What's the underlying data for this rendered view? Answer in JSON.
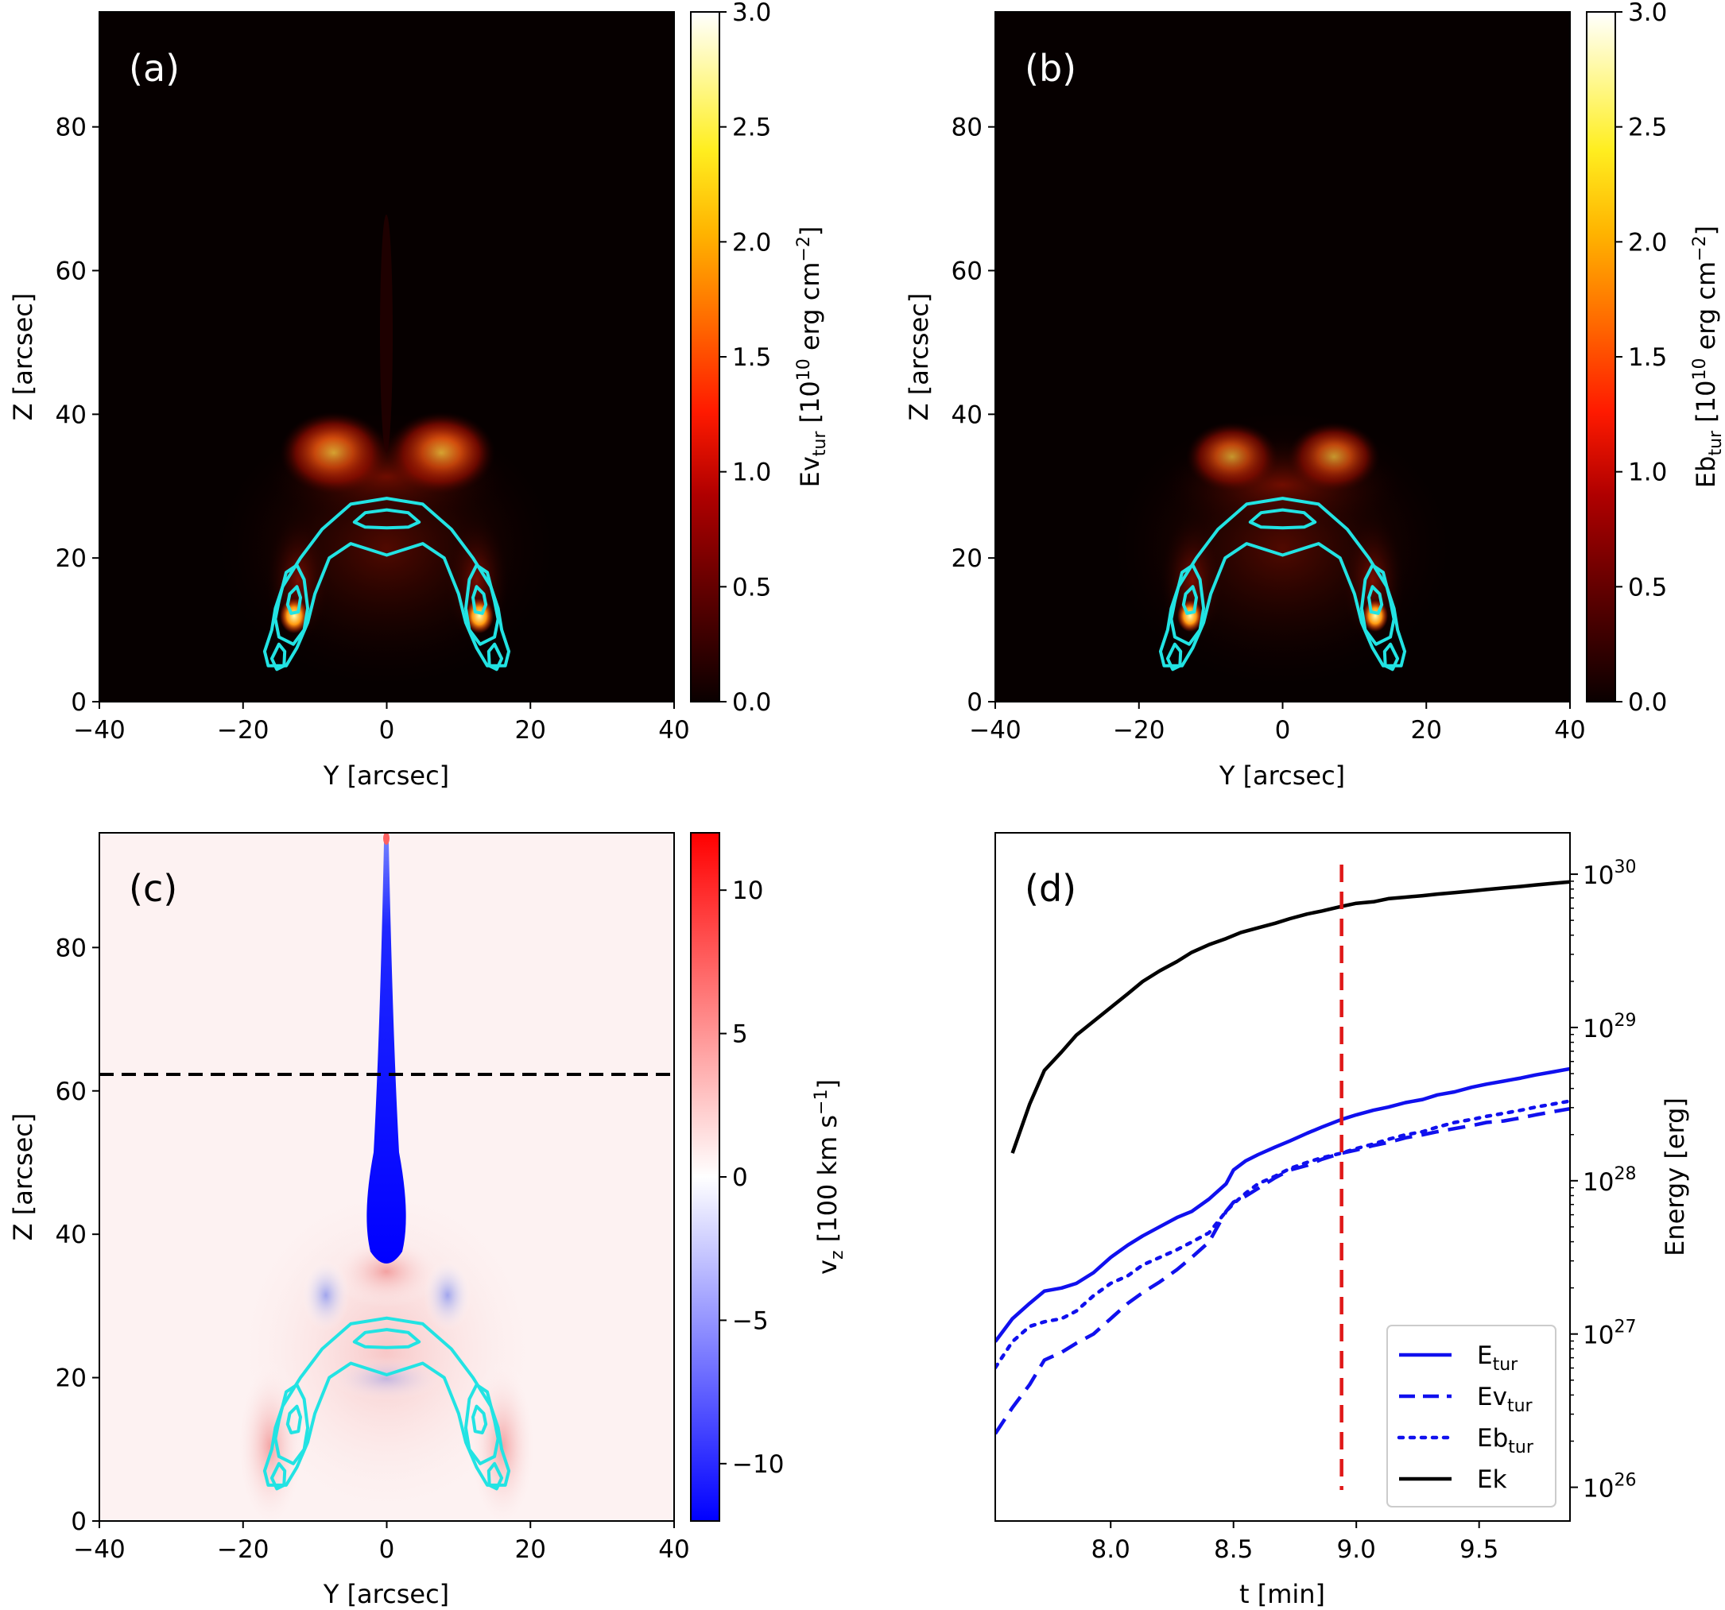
{
  "panels": {
    "a": {
      "label": "(a)",
      "xlabel": "Y [arcsec]",
      "ylabel": "Z [arcsec]",
      "colorbar_label_main": "Ev",
      "colorbar_label_sub": "tur",
      "colorbar_label_rest": " [10",
      "colorbar_label_exp": "10",
      "colorbar_label_unit": " erg cm",
      "colorbar_label_unit_exp": "−2",
      "colorbar_label_close": "]",
      "cbar_ticks": [
        "0.0",
        "0.5",
        "1.0",
        "1.5",
        "2.0",
        "2.5",
        "3.0"
      ]
    },
    "b": {
      "label": "(b)",
      "xlabel": "Y [arcsec]",
      "ylabel": "Z [arcsec]",
      "colorbar_label_main": "Eb",
      "colorbar_label_sub": "tur",
      "colorbar_label_rest": " [10",
      "colorbar_label_exp": "10",
      "colorbar_label_unit": " erg cm",
      "colorbar_label_unit_exp": "−2",
      "colorbar_label_close": "]",
      "cbar_ticks": [
        "0.0",
        "0.5",
        "1.0",
        "1.5",
        "2.0",
        "2.5",
        "3.0"
      ]
    },
    "c": {
      "label": "(c)",
      "xlabel": "Y [arcsec]",
      "ylabel": "Z [arcsec]",
      "colorbar_label_main": "v",
      "colorbar_label_sub": "z",
      "colorbar_label_rest": " [100 km s",
      "colorbar_label_exp": "−1",
      "colorbar_label_close": "]",
      "cbar_ticks": [
        "−10",
        "−5",
        "0",
        "5",
        "10"
      ],
      "dashed_line_z": 62.3
    },
    "d": {
      "label": "(d)",
      "xlabel": "t [min]",
      "ylabel": "Energy [erg]",
      "ytick_exponents": [
        "26",
        "27",
        "28",
        "29",
        "30"
      ]
    }
  },
  "colors": {
    "cyan": "#22e3e3",
    "blue": "#1010ee",
    "red_dash": "#e01818",
    "black": "#000000"
  },
  "chart_data": [
    {
      "type": "heatmap",
      "panel": "a",
      "title": "",
      "quantity": "Ev_tur [10^10 erg cm^-2]",
      "x_ticks": [
        -40,
        -20,
        0,
        20,
        40
      ],
      "y_ticks": [
        0,
        20,
        40,
        60,
        80
      ],
      "xlim": [
        -40,
        40
      ],
      "ylim": [
        0,
        96
      ],
      "clim": [
        0.0,
        3.0
      ],
      "colormap": "hot"
    },
    {
      "type": "heatmap",
      "panel": "b",
      "quantity": "Eb_tur [10^10 erg cm^-2]",
      "x_ticks": [
        -40,
        -20,
        0,
        20,
        40
      ],
      "y_ticks": [
        0,
        20,
        40,
        60,
        80
      ],
      "xlim": [
        -40,
        40
      ],
      "ylim": [
        0,
        96
      ],
      "clim": [
        0.0,
        3.0
      ],
      "colormap": "hot"
    },
    {
      "type": "heatmap",
      "panel": "c",
      "quantity": "v_z [100 km s^-1]",
      "x_ticks": [
        -40,
        -20,
        0,
        20,
        40
      ],
      "y_ticks": [
        0,
        20,
        40,
        60,
        80
      ],
      "xlim": [
        -40,
        40
      ],
      "ylim": [
        0,
        96
      ],
      "clim": [
        -12,
        12
      ],
      "colormap": "bwr"
    },
    {
      "type": "line",
      "panel": "d",
      "xlabel": "t [min]",
      "ylabel": "Energy [erg]",
      "xlim": [
        7.53,
        9.87
      ],
      "ylim_log10": [
        25.78,
        30.27
      ],
      "yscale": "log",
      "x_ticks": [
        8.0,
        8.5,
        9.0,
        9.5
      ],
      "x_tick_labels": [
        "8.0",
        "8.5",
        "9.0",
        "9.5"
      ],
      "vline_x": 8.94,
      "legend_position": "lower-right",
      "series": [
        {
          "name": "E",
          "sub": "tur",
          "style": "solid",
          "color": "#1010ee",
          "x": [
            7.53,
            7.6,
            7.67,
            7.73,
            7.8,
            7.86,
            7.93,
            8.0,
            8.07,
            8.13,
            8.2,
            8.27,
            8.33,
            8.4,
            8.47,
            8.5,
            8.55,
            8.6,
            8.67,
            8.73,
            8.8,
            8.86,
            8.94,
            9.0,
            9.07,
            9.13,
            9.2,
            9.27,
            9.33,
            9.4,
            9.47,
            9.53,
            9.6,
            9.67,
            9.73,
            9.8,
            9.87
          ],
          "log10": [
            26.95,
            27.1,
            27.2,
            27.28,
            27.3,
            27.33,
            27.4,
            27.5,
            27.58,
            27.64,
            27.7,
            27.76,
            27.8,
            27.88,
            27.98,
            28.07,
            28.13,
            28.17,
            28.22,
            28.26,
            28.31,
            28.35,
            28.4,
            28.43,
            28.46,
            28.48,
            28.51,
            28.53,
            28.56,
            28.58,
            28.61,
            28.63,
            28.65,
            28.67,
            28.69,
            28.71,
            28.73
          ]
        },
        {
          "name": "Ev",
          "sub": "tur",
          "style": "dashed",
          "color": "#1010ee",
          "x": [
            7.53,
            7.6,
            7.67,
            7.73,
            7.8,
            7.86,
            7.93,
            8.0,
            8.07,
            8.13,
            8.2,
            8.27,
            8.33,
            8.4,
            8.47,
            8.5,
            8.55,
            8.6,
            8.67,
            8.73,
            8.8,
            8.86,
            8.94,
            9.0,
            9.07,
            9.13,
            9.2,
            9.27,
            9.33,
            9.4,
            9.47,
            9.53,
            9.6,
            9.67,
            9.73,
            9.8,
            9.87
          ],
          "log10": [
            26.35,
            26.52,
            26.67,
            26.83,
            26.88,
            26.94,
            27.0,
            27.1,
            27.2,
            27.27,
            27.34,
            27.42,
            27.5,
            27.6,
            27.8,
            27.86,
            27.9,
            27.95,
            28.02,
            28.07,
            28.1,
            28.14,
            28.18,
            28.2,
            28.23,
            28.25,
            28.28,
            28.3,
            28.32,
            28.34,
            28.36,
            28.38,
            28.39,
            28.41,
            28.43,
            28.45,
            28.47
          ]
        },
        {
          "name": "Eb",
          "sub": "tur",
          "style": "dotted",
          "color": "#1010ee",
          "x": [
            7.53,
            7.6,
            7.67,
            7.73,
            7.8,
            7.86,
            7.93,
            8.0,
            8.07,
            8.13,
            8.2,
            8.27,
            8.33,
            8.4,
            8.47,
            8.5,
            8.55,
            8.6,
            8.67,
            8.73,
            8.8,
            8.86,
            8.94,
            9.0,
            9.07,
            9.13,
            9.2,
            9.27,
            9.33,
            9.4,
            9.47,
            9.53,
            9.6,
            9.67,
            9.73,
            9.8,
            9.87
          ],
          "log10": [
            26.78,
            26.95,
            27.05,
            27.08,
            27.1,
            27.15,
            27.25,
            27.33,
            27.38,
            27.45,
            27.5,
            27.55,
            27.6,
            27.66,
            27.8,
            27.85,
            27.92,
            27.98,
            28.03,
            28.08,
            28.12,
            28.15,
            28.18,
            28.21,
            28.24,
            28.27,
            28.3,
            28.32,
            28.35,
            28.38,
            28.4,
            28.42,
            28.44,
            28.46,
            28.48,
            28.5,
            28.52
          ]
        },
        {
          "name": "Ek",
          "sub": "",
          "style": "solid",
          "color": "#000000",
          "x": [
            7.6,
            7.67,
            7.73,
            7.8,
            7.86,
            7.93,
            8.0,
            8.07,
            8.13,
            8.2,
            8.27,
            8.33,
            8.4,
            8.47,
            8.53,
            8.6,
            8.67,
            8.73,
            8.8,
            8.86,
            8.94,
            9.0,
            9.07,
            9.13,
            9.2,
            9.27,
            9.33,
            9.4,
            9.47,
            9.53,
            9.6,
            9.67,
            9.73,
            9.8,
            9.87
          ],
          "log10": [
            28.18,
            28.5,
            28.72,
            28.84,
            28.95,
            29.04,
            29.13,
            29.22,
            29.3,
            29.37,
            29.43,
            29.49,
            29.54,
            29.58,
            29.62,
            29.65,
            29.68,
            29.71,
            29.74,
            29.76,
            29.79,
            29.81,
            29.82,
            29.84,
            29.85,
            29.86,
            29.87,
            29.88,
            29.89,
            29.9,
            29.91,
            29.92,
            29.93,
            29.94,
            29.95
          ]
        }
      ]
    }
  ]
}
